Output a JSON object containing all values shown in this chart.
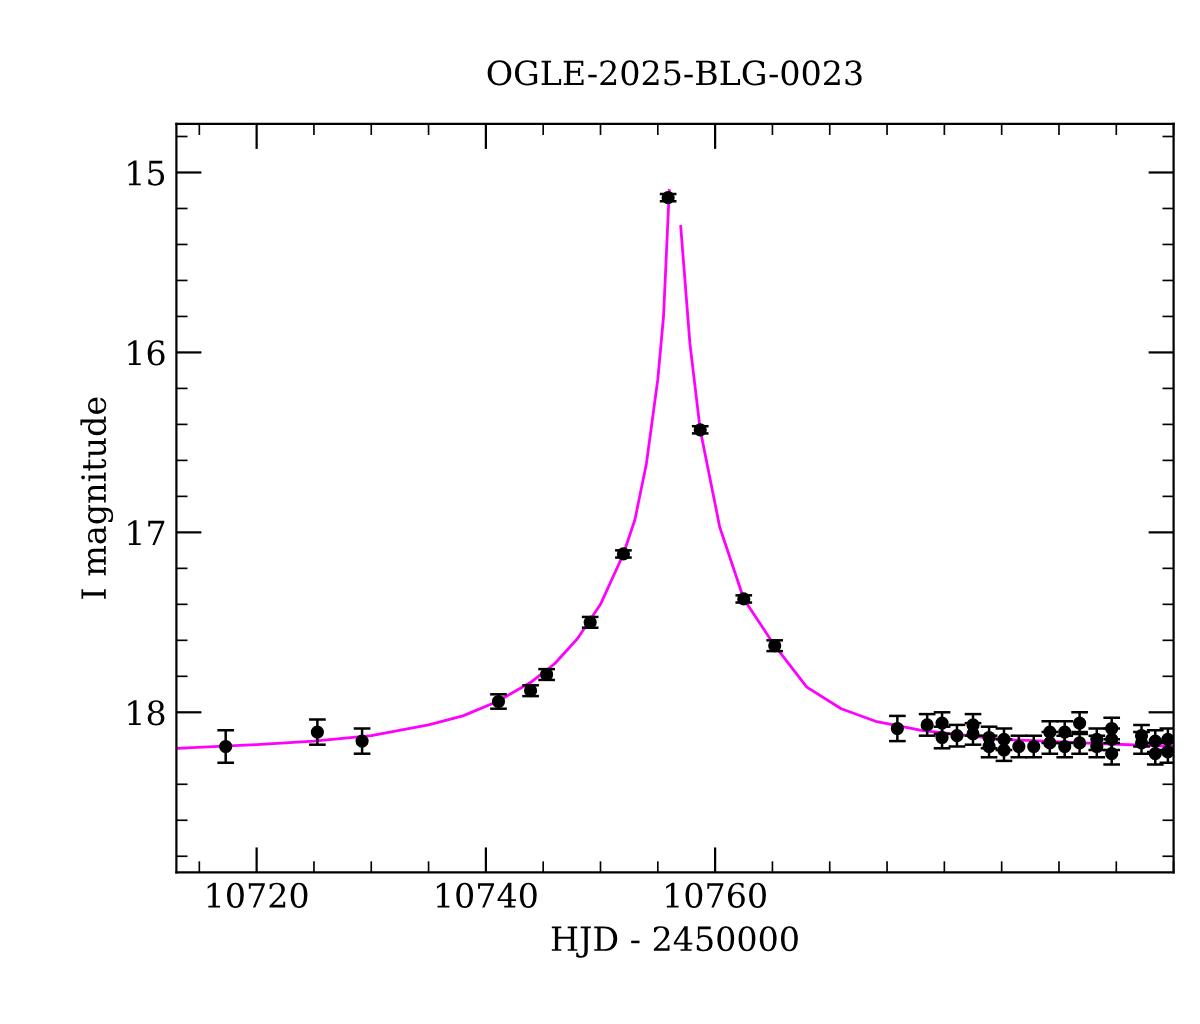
{
  "chart_data": {
    "type": "scatter",
    "title": "OGLE-2025-BLG-0023",
    "xlabel": "HJD - 2450000",
    "ylabel": "I magnitude",
    "xlim": [
      10713,
      10800
    ],
    "xticks": [
      10720,
      10740,
      10760
    ],
    "ylim": [
      18.89,
      14.73
    ],
    "yticks": [
      15,
      16,
      17,
      18
    ],
    "grid": false,
    "legend": false,
    "series": [
      {
        "type": "line",
        "color": "#ff00ff",
        "marker": "none",
        "line_style": "solid",
        "x": [
          10713,
          10720,
          10725,
          10730,
          10735,
          10738,
          10741,
          10744,
          10746,
          10748,
          10750,
          10752,
          10753,
          10754,
          10755,
          10755.5,
          10756,
          10756.2,
          10756.6,
          10757,
          10757.8,
          10758.7,
          10760.4,
          10762.5,
          10765.2,
          10768,
          10771,
          10774,
          10778,
          10785,
          10792,
          10800
        ],
        "values": [
          18.2,
          18.18,
          18.16,
          18.13,
          18.07,
          18.02,
          17.94,
          17.83,
          17.73,
          17.59,
          17.4,
          17.12,
          16.93,
          16.62,
          16.15,
          15.8,
          15.1,
          null,
          null,
          15.3,
          15.95,
          16.43,
          16.97,
          17.37,
          17.63,
          17.86,
          17.98,
          18.05,
          18.1,
          18.15,
          18.17,
          18.19
        ]
      },
      {
        "color": "#000000",
        "marker": "circle",
        "x": [
          10717.3,
          10725.3,
          10729.2,
          10741.1,
          10743.9,
          10745.3,
          10749.1,
          10752.0,
          10755.9,
          10758.7,
          10762.5,
          10765.2,
          10775.9,
          10778.5,
          10779.8,
          10779.8,
          10781.1,
          10782.5,
          10782.5,
          10783.9,
          10783.9,
          10785.2,
          10785.2,
          10786.5,
          10787.8,
          10789.2,
          10789.2,
          10790.5,
          10790.5,
          10791.8,
          10791.8,
          10793.3,
          10793.3,
          10794.6,
          10794.6,
          10794.6,
          10797.2,
          10797.2,
          10798.4,
          10798.4,
          10799.5,
          10799.5
        ],
        "values": [
          18.19,
          18.11,
          18.16,
          17.94,
          17.88,
          17.79,
          17.5,
          17.12,
          15.14,
          16.43,
          17.37,
          17.63,
          18.09,
          18.07,
          18.06,
          18.14,
          18.13,
          18.07,
          18.12,
          18.14,
          18.19,
          18.15,
          18.21,
          18.19,
          18.19,
          18.11,
          18.17,
          18.11,
          18.19,
          18.06,
          18.17,
          18.15,
          18.19,
          18.09,
          18.15,
          18.23,
          18.13,
          18.17,
          18.16,
          18.23,
          18.15,
          18.22
        ],
        "errors": [
          0.09,
          0.07,
          0.07,
          0.04,
          0.03,
          0.03,
          0.03,
          0.02,
          0.02,
          0.02,
          0.02,
          0.03,
          0.07,
          0.06,
          0.06,
          0.06,
          0.06,
          0.06,
          0.06,
          0.06,
          0.06,
          0.06,
          0.06,
          0.06,
          0.06,
          0.06,
          0.06,
          0.06,
          0.06,
          0.06,
          0.06,
          0.06,
          0.06,
          0.06,
          0.06,
          0.06,
          0.06,
          0.06,
          0.06,
          0.06,
          0.06,
          0.06
        ]
      }
    ]
  }
}
